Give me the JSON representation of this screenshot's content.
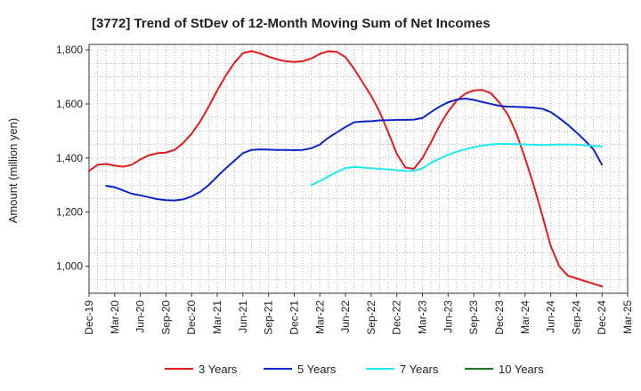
{
  "chart_data": {
    "type": "line",
    "title": "[3772]  Trend of StDev of 12-Month Moving Sum of Net Incomes",
    "ylabel": "Amount (million yen)",
    "xlabel": "",
    "ylim": [
      900,
      1820
    ],
    "yticks": [
      1000,
      1200,
      1400,
      1600,
      1800
    ],
    "ytick_labels": [
      "1,000",
      "1,200",
      "1,400",
      "1,600",
      "1,800"
    ],
    "x_start": "Dec-19",
    "x_end": "Mar-25",
    "x_tick_labels": [
      "Dec-19",
      "Mar-20",
      "Jun-20",
      "Sep-20",
      "Dec-20",
      "Mar-21",
      "Jun-21",
      "Sep-21",
      "Dec-21",
      "Mar-22",
      "Jun-22",
      "Sep-22",
      "Dec-22",
      "Mar-23",
      "Jun-23",
      "Sep-23",
      "Dec-23",
      "Mar-24",
      "Jun-24",
      "Sep-24",
      "Dec-24",
      "Mar-25"
    ],
    "grid": true,
    "legend_position": "bottom",
    "series": [
      {
        "name": "3 Years",
        "color": "#e31a1c",
        "x": [
          "Dec-19",
          "Jan-20",
          "Feb-20",
          "Mar-20",
          "Apr-20",
          "May-20",
          "Jun-20",
          "Jul-20",
          "Aug-20",
          "Sep-20",
          "Oct-20",
          "Nov-20",
          "Dec-20",
          "Jan-21",
          "Feb-21",
          "Mar-21",
          "Apr-21",
          "May-21",
          "Jun-21",
          "Jul-21",
          "Aug-21",
          "Sep-21",
          "Oct-21",
          "Nov-21",
          "Dec-21",
          "Jan-22",
          "Feb-22",
          "Mar-22",
          "Apr-22",
          "May-22",
          "Jun-22",
          "Jul-22",
          "Aug-22",
          "Sep-22",
          "Oct-22",
          "Nov-22",
          "Dec-22",
          "Jan-23",
          "Feb-23",
          "Mar-23",
          "Apr-23",
          "May-23",
          "Jun-23",
          "Jul-23",
          "Aug-23",
          "Sep-23",
          "Oct-23",
          "Nov-23",
          "Dec-23",
          "Jan-24",
          "Feb-24",
          "Mar-24",
          "Apr-24",
          "May-24",
          "Jun-24",
          "Jul-24",
          "Aug-24",
          "Sep-24",
          "Oct-24",
          "Nov-24",
          "Dec-24"
        ],
        "values": [
          1352,
          1375,
          1378,
          1372,
          1368,
          1375,
          1395,
          1410,
          1418,
          1420,
          1430,
          1455,
          1490,
          1535,
          1590,
          1650,
          1705,
          1752,
          1788,
          1795,
          1787,
          1775,
          1765,
          1758,
          1755,
          1758,
          1768,
          1785,
          1795,
          1792,
          1773,
          1730,
          1680,
          1630,
          1570,
          1495,
          1415,
          1365,
          1360,
          1400,
          1458,
          1520,
          1572,
          1612,
          1638,
          1650,
          1652,
          1640,
          1605,
          1560,
          1490,
          1400,
          1300,
          1190,
          1075,
          1000,
          965,
          955,
          945,
          935,
          925
        ]
      },
      {
        "name": "5 Years",
        "color": "#0b24c9",
        "x": [
          "Feb-20",
          "Mar-20",
          "Apr-20",
          "May-20",
          "Jun-20",
          "Jul-20",
          "Aug-20",
          "Sep-20",
          "Oct-20",
          "Nov-20",
          "Dec-20",
          "Jan-21",
          "Feb-21",
          "Mar-21",
          "Apr-21",
          "May-21",
          "Jun-21",
          "Jul-21",
          "Aug-21",
          "Sep-21",
          "Oct-21",
          "Nov-21",
          "Dec-21",
          "Jan-22",
          "Feb-22",
          "Mar-22",
          "Apr-22",
          "May-22",
          "Jun-22",
          "Jul-22",
          "Aug-22",
          "Sep-22",
          "Oct-22",
          "Nov-22",
          "Dec-22",
          "Jan-23",
          "Feb-23",
          "Mar-23",
          "Apr-23",
          "May-23",
          "Jun-23",
          "Jul-23",
          "Aug-23",
          "Sep-23",
          "Oct-23",
          "Nov-23",
          "Dec-23",
          "Jan-24",
          "Feb-24",
          "Mar-24",
          "Apr-24",
          "May-24",
          "Jun-24",
          "Jul-24",
          "Aug-24",
          "Sep-24",
          "Oct-24",
          "Nov-24",
          "Dec-24"
        ],
        "values": [
          1297,
          1292,
          1280,
          1268,
          1262,
          1255,
          1248,
          1244,
          1243,
          1247,
          1258,
          1275,
          1300,
          1332,
          1362,
          1390,
          1418,
          1430,
          1432,
          1431,
          1430,
          1430,
          1429,
          1430,
          1436,
          1450,
          1475,
          1495,
          1515,
          1532,
          1535,
          1536,
          1539,
          1540,
          1541,
          1541,
          1542,
          1548,
          1570,
          1590,
          1606,
          1616,
          1620,
          1615,
          1607,
          1600,
          1593,
          1590,
          1589,
          1588,
          1586,
          1582,
          1570,
          1548,
          1523,
          1495,
          1465,
          1432,
          1375
        ]
      },
      {
        "name": "7 Years",
        "color": "#1de9f0",
        "x": [
          "Feb-22",
          "Mar-22",
          "Apr-22",
          "May-22",
          "Jun-22",
          "Jul-22",
          "Aug-22",
          "Sep-22",
          "Oct-22",
          "Nov-22",
          "Dec-22",
          "Jan-23",
          "Feb-23",
          "Mar-23",
          "Apr-23",
          "May-23",
          "Jun-23",
          "Jul-23",
          "Aug-23",
          "Sep-23",
          "Oct-23",
          "Nov-23",
          "Dec-23",
          "Jan-24",
          "Feb-24",
          "Mar-24",
          "Apr-24",
          "May-24",
          "Jun-24",
          "Jul-24",
          "Aug-24",
          "Sep-24",
          "Oct-24",
          "Nov-24",
          "Dec-24"
        ],
        "values": [
          1300,
          1315,
          1332,
          1348,
          1363,
          1367,
          1365,
          1362,
          1360,
          1358,
          1355,
          1352,
          1352,
          1362,
          1382,
          1398,
          1412,
          1423,
          1432,
          1440,
          1446,
          1450,
          1452,
          1452,
          1451,
          1450,
          1449,
          1448,
          1449,
          1450,
          1450,
          1449,
          1447,
          1445,
          1443
        ]
      },
      {
        "name": "10 Years",
        "color": "#1b7a1b",
        "x": [],
        "values": []
      }
    ]
  }
}
